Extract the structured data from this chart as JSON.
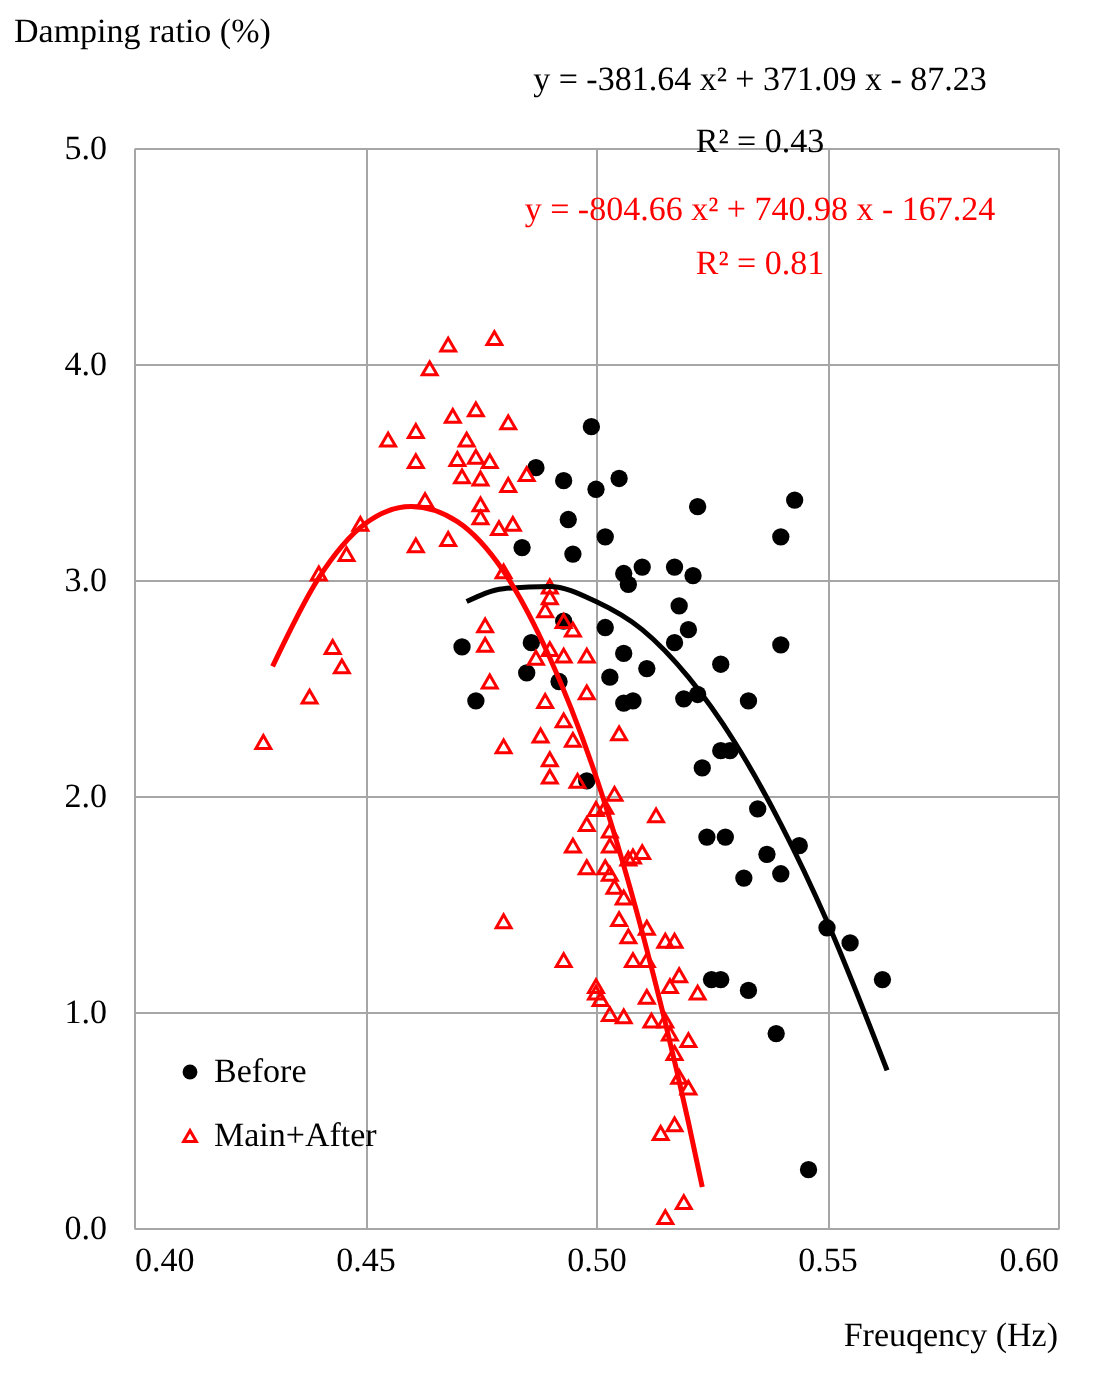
{
  "chart_data": {
    "type": "scatter",
    "xlabel": "Freuqency (Hz)",
    "ylabel": "Damping ratio (%)",
    "xlim": [
      0.4,
      0.6
    ],
    "xticks": [
      {
        "value": 0.4,
        "label": "0.40"
      },
      {
        "value": 0.45,
        "label": "0.45"
      },
      {
        "value": 0.5,
        "label": "0.50"
      },
      {
        "value": 0.55,
        "label": "0.55"
      },
      {
        "value": 0.6,
        "label": "0.60"
      }
    ],
    "ylim": [
      0,
      5
    ],
    "yticks": [
      {
        "value": 0,
        "label": "0.0"
      },
      {
        "value": 1,
        "label": "1.0"
      },
      {
        "value": 2,
        "label": "2.0"
      },
      {
        "value": 3,
        "label": "3.0"
      },
      {
        "value": 4,
        "label": "4.0"
      },
      {
        "value": 5,
        "label": "5.0"
      }
    ],
    "grid": true,
    "legend": "bottom left",
    "annotations": [
      "y = -381.64 x² + 371.09 x - 87.23",
      "R² = 0.43",
      "y = -804.66 x² + 740.98 x - 167.24",
      "R² = 0.81"
    ],
    "series": [
      {
        "name": "Before",
        "marker": "circle",
        "color": "#000000",
        "x": [
          0.499,
          0.487,
          0.493,
          0.5,
          0.505,
          0.494,
          0.502,
          0.495,
          0.484,
          0.506,
          0.502,
          0.506,
          0.503,
          0.506,
          0.492,
          0.486,
          0.485,
          0.471,
          0.474,
          0.493,
          0.498,
          0.522,
          0.543,
          0.54,
          0.51,
          0.507,
          0.517,
          0.521,
          0.518,
          0.52,
          0.517,
          0.54,
          0.511,
          0.527,
          0.508,
          0.519,
          0.522,
          0.533,
          0.527,
          0.529,
          0.523,
          0.535,
          0.524,
          0.528,
          0.537,
          0.544,
          0.532,
          0.54,
          0.55,
          0.555,
          0.562,
          0.525,
          0.527,
          0.533,
          0.539,
          0.546
        ],
        "values": [
          3.71,
          3.52,
          3.46,
          3.42,
          3.47,
          3.28,
          3.2,
          3.12,
          3.15,
          3.03,
          2.78,
          2.66,
          2.55,
          2.43,
          2.53,
          2.71,
          2.57,
          2.69,
          2.44,
          2.81,
          2.07,
          3.34,
          3.37,
          3.2,
          3.06,
          2.98,
          3.06,
          3.02,
          2.88,
          2.77,
          2.71,
          2.7,
          2.59,
          2.61,
          2.44,
          2.45,
          2.47,
          2.44,
          2.21,
          2.21,
          2.13,
          1.94,
          1.81,
          1.81,
          1.73,
          1.77,
          1.62,
          1.64,
          1.39,
          1.32,
          1.15,
          1.15,
          1.15,
          1.1,
          0.9,
          0.27
        ]
      },
      {
        "name": "Main+After",
        "marker": "triangle",
        "color": "#ff0000",
        "x": [
          0.468,
          0.478,
          0.464,
          0.455,
          0.461,
          0.469,
          0.474,
          0.481,
          0.472,
          0.461,
          0.47,
          0.474,
          0.477,
          0.471,
          0.475,
          0.481,
          0.485,
          0.463,
          0.475,
          0.475,
          0.449,
          0.482,
          0.479,
          0.461,
          0.468,
          0.446,
          0.44,
          0.48,
          0.49,
          0.49,
          0.489,
          0.493,
          0.495,
          0.476,
          0.476,
          0.443,
          0.445,
          0.438,
          0.428,
          0.477,
          0.49,
          0.493,
          0.498,
          0.487,
          0.498,
          0.489,
          0.493,
          0.488,
          0.48,
          0.495,
          0.49,
          0.49,
          0.496,
          0.504,
          0.5,
          0.498,
          0.503,
          0.495,
          0.503,
          0.498,
          0.503,
          0.504,
          0.505,
          0.513,
          0.502,
          0.508,
          0.51,
          0.507,
          0.502,
          0.506,
          0.505,
          0.511,
          0.507,
          0.515,
          0.517,
          0.508,
          0.511,
          0.518,
          0.516,
          0.522,
          0.511,
          0.5,
          0.503,
          0.506,
          0.512,
          0.515,
          0.52,
          0.516,
          0.517,
          0.518,
          0.52,
          0.514,
          0.517,
          0.519,
          0.515,
          0.48,
          0.493,
          0.5,
          0.501
        ],
        "values": [
          4.09,
          4.12,
          3.98,
          3.65,
          3.69,
          3.76,
          3.79,
          3.73,
          3.65,
          3.55,
          3.56,
          3.57,
          3.55,
          3.48,
          3.47,
          3.44,
          3.49,
          3.37,
          3.35,
          3.29,
          3.26,
          3.26,
          3.24,
          3.16,
          3.19,
          3.12,
          3.03,
          3.04,
          2.97,
          2.92,
          2.86,
          2.81,
          2.77,
          2.79,
          2.7,
          2.69,
          2.6,
          2.46,
          2.25,
          2.53,
          2.68,
          2.65,
          2.65,
          2.64,
          2.48,
          2.44,
          2.35,
          2.28,
          2.23,
          2.26,
          2.17,
          2.09,
          2.07,
          2.01,
          1.94,
          1.87,
          1.84,
          1.77,
          1.77,
          1.67,
          1.64,
          1.58,
          2.29,
          1.91,
          1.95,
          1.72,
          1.74,
          1.71,
          1.67,
          1.53,
          1.43,
          1.39,
          1.35,
          1.33,
          1.33,
          1.24,
          1.24,
          1.17,
          1.12,
          1.09,
          1.07,
          1.09,
          0.99,
          0.98,
          0.96,
          0.96,
          0.87,
          0.9,
          0.81,
          0.7,
          0.65,
          0.44,
          0.48,
          0.12,
          0.05,
          1.42,
          1.24,
          1.12,
          1.06
        ]
      },
      {
        "type": "line",
        "color": "#000000",
        "x": [
          0.472,
          0.48,
          0.49,
          0.5,
          0.51,
          0.52,
          0.53,
          0.54,
          0.55,
          0.563
        ],
        "values": [
          2.9,
          2.96,
          2.97,
          2.9,
          2.77,
          2.55,
          2.25,
          1.87,
          1.42,
          0.73
        ]
      },
      {
        "type": "line",
        "color": "#ff0000",
        "x": [
          0.43,
          0.44,
          0.45,
          0.46,
          0.47,
          0.48,
          0.49,
          0.5,
          0.51,
          0.52,
          0.523
        ],
        "values": [
          2.6,
          3.01,
          3.26,
          3.34,
          3.27,
          3.04,
          2.64,
          2.09,
          1.37,
          0.49,
          0.19
        ]
      }
    ]
  }
}
